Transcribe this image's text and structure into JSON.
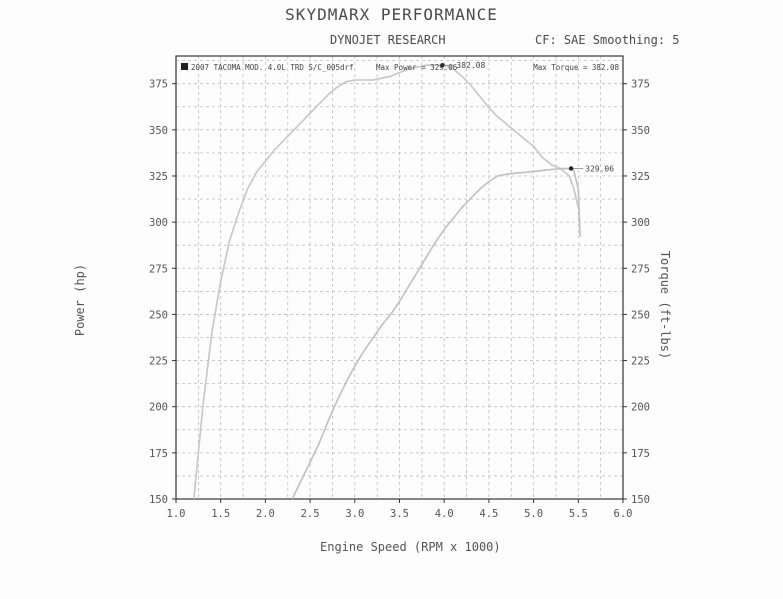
{
  "header": {
    "title": "SKYDMARX PERFORMANCE",
    "subtitle": "DYNOJET RESEARCH",
    "cf_note": "CF: SAE Smoothing: 5"
  },
  "chart_data": {
    "type": "line",
    "xlabel": "Engine Speed (RPM x 1000)",
    "ylabel": "Power (hp)",
    "ylabel_right": "Torque (ft-lbs)",
    "xlim": [
      1.0,
      6.0
    ],
    "ylim": [
      150,
      390
    ],
    "x_ticks": [
      "1.0",
      "1.5",
      "2.0",
      "2.5",
      "3.0",
      "3.5",
      "4.0",
      "4.5",
      "5.0",
      "5.5",
      "6.0"
    ],
    "y_ticks": [
      "150",
      "175",
      "200",
      "225",
      "250",
      "275",
      "300",
      "325",
      "350",
      "375"
    ],
    "grid": true,
    "legend_entry": "2007 TACOMA MOD. 4.0L TRD S/C_005drf",
    "legend_max_power": "Max Power = 329.06",
    "legend_max_torque": "Max Torque = 382.08",
    "colors": {
      "power": "#bfbfbf",
      "torque": "#c6c6c6",
      "grid": "#bdbdbd",
      "axis": "#333333"
    },
    "series": [
      {
        "key": "torque",
        "x": [
          1.2,
          1.3,
          1.4,
          1.5,
          1.6,
          1.7,
          1.8,
          1.9,
          2.0,
          2.1,
          2.2,
          2.3,
          2.4,
          2.5,
          2.6,
          2.7,
          2.8,
          2.9,
          3.0,
          3.1,
          3.2,
          3.3,
          3.4,
          3.5,
          3.6,
          3.7,
          3.8,
          3.9,
          4.0,
          4.1,
          4.2,
          4.3,
          4.4,
          4.5,
          4.6,
          4.7,
          4.8,
          4.9,
          5.0,
          5.1,
          5.2,
          5.3,
          5.4,
          5.45,
          5.5
        ],
        "values": [
          150,
          200,
          240,
          268,
          290,
          305,
          318,
          327,
          333,
          339,
          344,
          349,
          354,
          359,
          364,
          369,
          373,
          376,
          377,
          377,
          377,
          378,
          379,
          381,
          383,
          384,
          385,
          385,
          385,
          383,
          379,
          374,
          368,
          362,
          357,
          353,
          349,
          345,
          341,
          335,
          331,
          329,
          325,
          318,
          308
        ]
      },
      {
        "key": "power",
        "x": [
          2.3,
          2.4,
          2.5,
          2.6,
          2.7,
          2.8,
          2.9,
          3.0,
          3.1,
          3.2,
          3.3,
          3.4,
          3.5,
          3.6,
          3.7,
          3.8,
          3.9,
          4.0,
          4.1,
          4.2,
          4.3,
          4.4,
          4.5,
          4.6,
          4.7,
          4.8,
          4.9,
          5.0,
          5.1,
          5.2,
          5.3,
          5.4,
          5.45,
          5.5,
          5.52
        ],
        "values": [
          150,
          160,
          170,
          180,
          192,
          203,
          213,
          222,
          230,
          237,
          244,
          250,
          257,
          265,
          273,
          281,
          289,
          296,
          302,
          308,
          313,
          318,
          322,
          325,
          326,
          326.5,
          327,
          327.5,
          328,
          328.5,
          329,
          329.06,
          328,
          318,
          292
        ]
      }
    ],
    "annotations": [
      {
        "label": "382.08",
        "x": 3.98,
        "y": 385
      },
      {
        "label": "329.06",
        "x": 5.42,
        "y": 329.06
      }
    ]
  }
}
